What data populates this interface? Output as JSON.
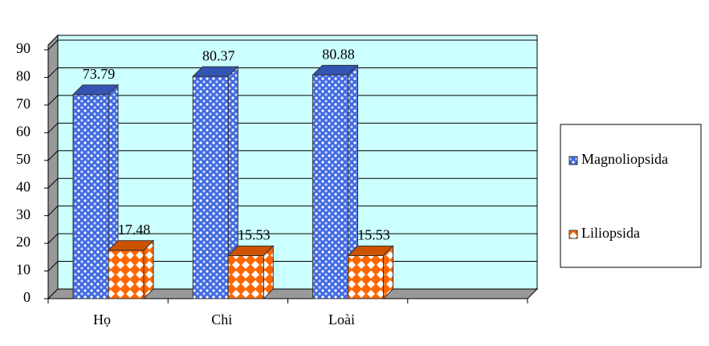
{
  "chart_data": {
    "type": "bar3d",
    "categories": [
      "Họ",
      "Chi",
      "Loài",
      null
    ],
    "series": [
      {
        "name": "Magnoliopsida",
        "color": "#4169e1",
        "values": [
          73.79,
          80.37,
          80.88,
          null
        ]
      },
      {
        "name": "Liliopsida",
        "color": "#ff6600",
        "values": [
          17.48,
          15.53,
          15.53,
          null
        ]
      }
    ],
    "ylim": [
      0,
      90
    ],
    "yticks": [
      0,
      10,
      20,
      30,
      40,
      50,
      60,
      70,
      80,
      90
    ],
    "grid": true,
    "legend": "right"
  }
}
